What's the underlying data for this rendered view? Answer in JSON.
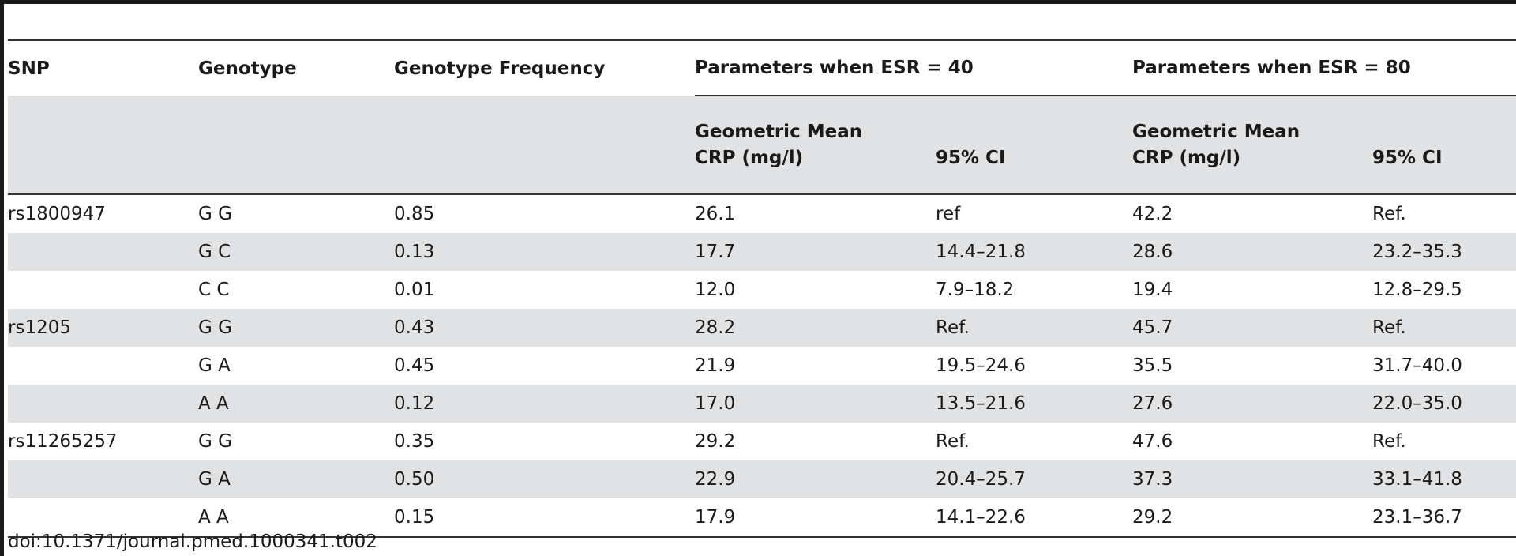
{
  "table": {
    "headers": {
      "snp": "SNP",
      "genotype": "Genotype",
      "genotype_frequency": "Genotype Frequency",
      "group_esr40": "Parameters when ESR = 40",
      "group_esr80": "Parameters when ESR = 80",
      "geometric_mean_line1": "Geometric Mean",
      "geometric_mean_line2": "CRP (mg/l)",
      "ci": "95% CI"
    },
    "rows": [
      {
        "snp": "rs1800947",
        "genotype": "G G",
        "frequency": "0.85",
        "gm40": "26.1",
        "ci40": "ref",
        "gm80": "42.2",
        "ci80": "Ref."
      },
      {
        "snp": "",
        "genotype": "G C",
        "frequency": "0.13",
        "gm40": "17.7",
        "ci40": "14.4–21.8",
        "gm80": "28.6",
        "ci80": "23.2–35.3"
      },
      {
        "snp": "",
        "genotype": "C C",
        "frequency": "0.01",
        "gm40": "12.0",
        "ci40": "7.9–18.2",
        "gm80": "19.4",
        "ci80": "12.8–29.5"
      },
      {
        "snp": "rs1205",
        "genotype": "G G",
        "frequency": "0.43",
        "gm40": "28.2",
        "ci40": "Ref.",
        "gm80": "45.7",
        "ci80": "Ref."
      },
      {
        "snp": "",
        "genotype": "G A",
        "frequency": "0.45",
        "gm40": "21.9",
        "ci40": "19.5–24.6",
        "gm80": "35.5",
        "ci80": "31.7–40.0"
      },
      {
        "snp": "",
        "genotype": "A A",
        "frequency": "0.12",
        "gm40": "17.0",
        "ci40": "13.5–21.6",
        "gm80": "27.6",
        "ci80": "22.0–35.0"
      },
      {
        "snp": "rs11265257",
        "genotype": "G G",
        "frequency": "0.35",
        "gm40": "29.2",
        "ci40": "Ref.",
        "gm80": "47.6",
        "ci80": "Ref."
      },
      {
        "snp": "",
        "genotype": "G A",
        "frequency": "0.50",
        "gm40": "22.9",
        "ci40": "20.4–25.7",
        "gm80": "37.3",
        "ci80": "33.1–41.8"
      },
      {
        "snp": "",
        "genotype": "A A",
        "frequency": "0.15",
        "gm40": "17.9",
        "ci40": "14.1–22.6",
        "gm80": "29.2",
        "ci80": "23.1–36.7"
      }
    ]
  },
  "doi": "doi:10.1371/journal.pmed.1000341.t002"
}
